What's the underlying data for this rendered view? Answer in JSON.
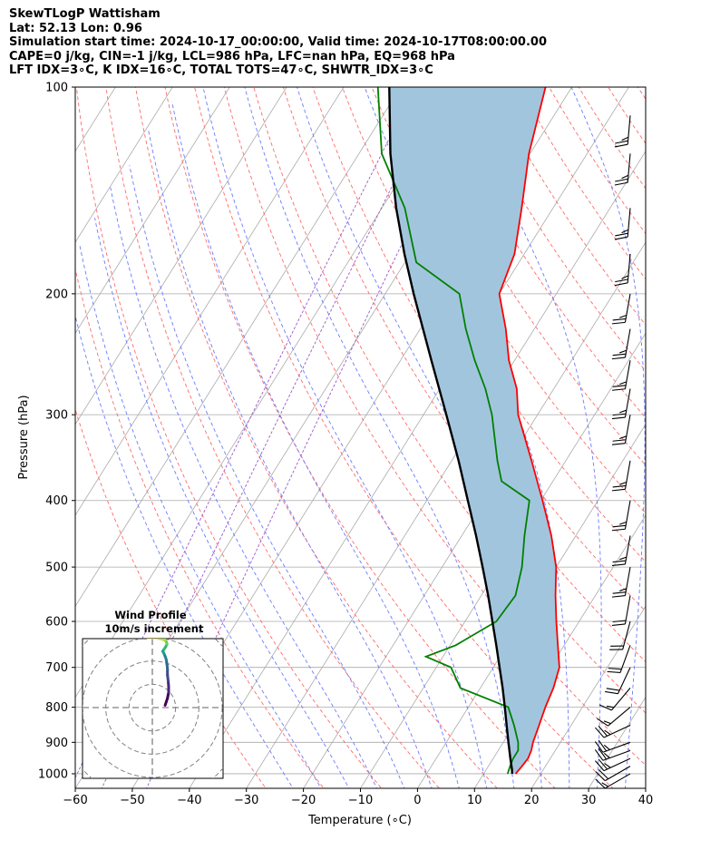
{
  "header": {
    "line1": "SkewTLogP Wattisham",
    "line2": "Lat: 52.13   Lon: 0.96",
    "line3": "Simulation start time: 2024-10-17_00:00:00, Valid time: 2024-10-17T08:00:00.00",
    "line4": "CAPE=0 j/kg, CIN=-1 j/kg, LCL=986 hPa, LFC=nan hPa, EQ=968 hPa",
    "line5": "LFT IDX=3∘C, K IDX=16∘C, TOTAL TOTS=47∘C, SHWTR_IDX=3∘C"
  },
  "chart_data": {
    "type": "line",
    "subtype": "skew-t log-p",
    "xlabel": "Temperature (∘C)",
    "ylabel": "Pressure (hPa)",
    "xlim": [
      -60,
      40
    ],
    "ylim": [
      1050,
      100
    ],
    "y_scale": "log",
    "x_ticks": [
      -60,
      -50,
      -40,
      -30,
      -20,
      -10,
      0,
      10,
      20,
      30,
      40
    ],
    "x_tick_labels": [
      "−60",
      "−50",
      "−40",
      "−30",
      "−20",
      "−10",
      "0",
      "10",
      "20",
      "30",
      "40"
    ],
    "y_ticks": [
      1000,
      900,
      800,
      700,
      600,
      500,
      400,
      300,
      200,
      100
    ],
    "grid": true,
    "colors": {
      "temperature": "#ff0000",
      "dewpoint": "#008000",
      "parcel": "#000000",
      "fill": "#a2c5de",
      "dry_adiabats": "#ff6a6a",
      "moist_adiabats": "#6b7bff",
      "mixing_ratio": "#9b59c6",
      "isotherms": "#aaaaaa"
    },
    "series": [
      {
        "role": "temperature",
        "points": [
          [
            1000,
            15.6
          ],
          [
            975,
            15.9
          ],
          [
            950,
            16.1
          ],
          [
            925,
            15.8
          ],
          [
            900,
            15.2
          ],
          [
            850,
            14.4
          ],
          [
            800,
            13.5
          ],
          [
            750,
            12.8
          ],
          [
            700,
            11.6
          ],
          [
            650,
            8.9
          ],
          [
            600,
            6.0
          ],
          [
            550,
            3.0
          ],
          [
            500,
            0.0
          ],
          [
            450,
            -4.3
          ],
          [
            400,
            -9.7
          ],
          [
            350,
            -16.0
          ],
          [
            300,
            -23.4
          ],
          [
            275,
            -26.5
          ],
          [
            250,
            -31.0
          ],
          [
            225,
            -35.0
          ],
          [
            200,
            -40.0
          ],
          [
            175,
            -41.7
          ],
          [
            150,
            -45.5
          ],
          [
            125,
            -50.2
          ],
          [
            100,
            -54.6
          ]
        ]
      },
      {
        "role": "dewpoint",
        "points": [
          [
            1000,
            14.2
          ],
          [
            975,
            13.8
          ],
          [
            950,
            13.5
          ],
          [
            925,
            13.5
          ],
          [
            900,
            12.6
          ],
          [
            850,
            10.0
          ],
          [
            800,
            7.0
          ],
          [
            750,
            -3.5
          ],
          [
            700,
            -7.4
          ],
          [
            675,
            -13.0
          ],
          [
            650,
            -9.0
          ],
          [
            600,
            -4.5
          ],
          [
            550,
            -4.0
          ],
          [
            500,
            -6.0
          ],
          [
            450,
            -9.0
          ],
          [
            400,
            -12.0
          ],
          [
            375,
            -19.0
          ],
          [
            350,
            -22.0
          ],
          [
            300,
            -28.0
          ],
          [
            275,
            -32.0
          ],
          [
            250,
            -37.0
          ],
          [
            225,
            -42.0
          ],
          [
            200,
            -47.0
          ],
          [
            180,
            -58.0
          ],
          [
            150,
            -66.0
          ],
          [
            125,
            -76.0
          ],
          [
            100,
            -84.0
          ]
        ]
      },
      {
        "role": "parcel",
        "points": [
          [
            1000,
            15.0
          ],
          [
            986,
            14.5
          ],
          [
            950,
            13.0
          ],
          [
            900,
            10.9
          ],
          [
            850,
            8.7
          ],
          [
            800,
            6.4
          ],
          [
            750,
            3.9
          ],
          [
            700,
            1.1
          ],
          [
            650,
            -1.9
          ],
          [
            600,
            -5.2
          ],
          [
            550,
            -8.8
          ],
          [
            500,
            -12.9
          ],
          [
            450,
            -17.5
          ],
          [
            400,
            -22.8
          ],
          [
            350,
            -28.8
          ],
          [
            300,
            -36.0
          ],
          [
            250,
            -44.6
          ],
          [
            200,
            -55.0
          ],
          [
            175,
            -61.0
          ],
          [
            150,
            -67.5
          ],
          [
            125,
            -74.5
          ],
          [
            100,
            -82.0
          ]
        ]
      }
    ],
    "wind_barbs": [
      {
        "pressure": 1000,
        "speed_kt": 15,
        "dir_deg": 240
      },
      {
        "pressure": 975,
        "speed_kt": 20,
        "dir_deg": 240
      },
      {
        "pressure": 950,
        "speed_kt": 25,
        "dir_deg": 245
      },
      {
        "pressure": 925,
        "speed_kt": 25,
        "dir_deg": 250
      },
      {
        "pressure": 900,
        "speed_kt": 25,
        "dir_deg": 250
      },
      {
        "pressure": 850,
        "speed_kt": 25,
        "dir_deg": 245
      },
      {
        "pressure": 800,
        "speed_kt": 15,
        "dir_deg": 230
      },
      {
        "pressure": 750,
        "speed_kt": 15,
        "dir_deg": 220
      },
      {
        "pressure": 700,
        "speed_kt": 20,
        "dir_deg": 205
      },
      {
        "pressure": 650,
        "speed_kt": 20,
        "dir_deg": 200
      },
      {
        "pressure": 600,
        "speed_kt": 20,
        "dir_deg": 195
      },
      {
        "pressure": 550,
        "speed_kt": 20,
        "dir_deg": 190
      },
      {
        "pressure": 500,
        "speed_kt": 25,
        "dir_deg": 190
      },
      {
        "pressure": 450,
        "speed_kt": 25,
        "dir_deg": 190
      },
      {
        "pressure": 400,
        "speed_kt": 25,
        "dir_deg": 190
      },
      {
        "pressure": 350,
        "speed_kt": 25,
        "dir_deg": 190
      },
      {
        "pressure": 300,
        "speed_kt": 25,
        "dir_deg": 190
      },
      {
        "pressure": 275,
        "speed_kt": 25,
        "dir_deg": 190
      },
      {
        "pressure": 250,
        "speed_kt": 25,
        "dir_deg": 190
      },
      {
        "pressure": 225,
        "speed_kt": 25,
        "dir_deg": 190
      },
      {
        "pressure": 200,
        "speed_kt": 25,
        "dir_deg": 190
      },
      {
        "pressure": 175,
        "speed_kt": 25,
        "dir_deg": 185
      },
      {
        "pressure": 150,
        "speed_kt": 25,
        "dir_deg": 185
      },
      {
        "pressure": 125,
        "speed_kt": 25,
        "dir_deg": 185
      },
      {
        "pressure": 110,
        "speed_kt": 25,
        "dir_deg": 185
      }
    ],
    "hodograph": {
      "title": "Wind Profile",
      "subtitle": "10m/s increment",
      "rings_ms": [
        10,
        20,
        30,
        40,
        50
      ],
      "lim_ms": [
        -30,
        30
      ],
      "points_ms": [
        [
          5.5,
          1.0
        ],
        [
          6.0,
          2.5
        ],
        [
          6.5,
          4.0
        ],
        [
          7.0,
          6.5
        ],
        [
          7.0,
          9.0
        ],
        [
          6.8,
          11.5
        ],
        [
          6.5,
          14.0
        ],
        [
          6.5,
          16.5
        ],
        [
          6.3,
          18.5
        ],
        [
          6.0,
          20.5
        ],
        [
          5.5,
          22.0
        ],
        [
          5.0,
          23.2
        ],
        [
          4.5,
          24.2
        ],
        [
          5.0,
          25.0
        ],
        [
          5.8,
          26.2
        ],
        [
          6.3,
          27.3
        ],
        [
          6.0,
          28.3
        ],
        [
          5.3,
          29.0
        ],
        [
          4.0,
          29.5
        ],
        [
          2.0,
          29.8
        ],
        [
          0.0,
          30.0
        ],
        [
          -2.0,
          30.0
        ]
      ]
    }
  }
}
